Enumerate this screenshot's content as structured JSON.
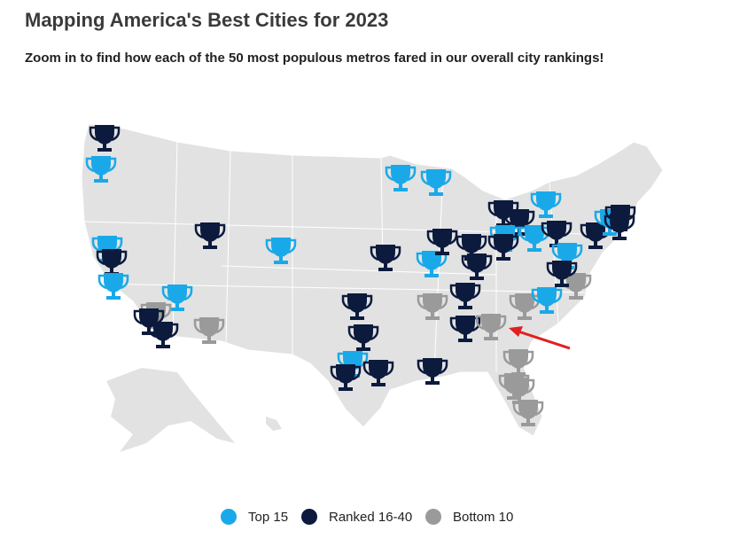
{
  "header": {
    "title": "Mapping America's Best Cities for 2023",
    "subtitle": "Zoom in to find how each of the 50 most populous metros fared in our overall city rankings!"
  },
  "legend": [
    {
      "name": "Top 15",
      "color": "#1aa9e8"
    },
    {
      "name": "Ranked 16-40",
      "color": "#0b1a3d"
    },
    {
      "name": "Bottom 10",
      "color": "#9a9a9a"
    }
  ]
}
